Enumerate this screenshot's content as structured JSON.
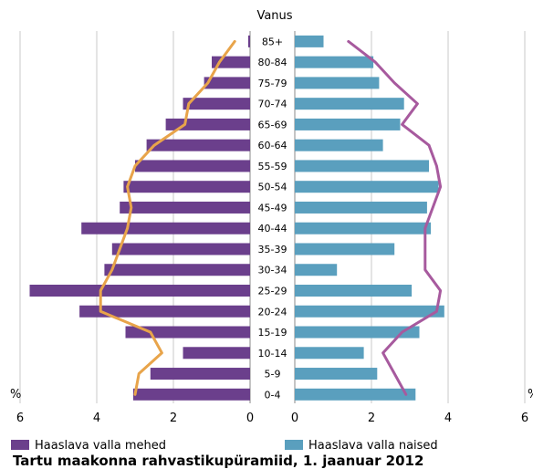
{
  "chart_data": {
    "type": "bar",
    "title": "Tartu maakonna rahvastikupüramiid, 1. jaanuar 2012",
    "category_axis_label": "Vanus",
    "unit_label_left": "%",
    "unit_label_right": "%",
    "categories": [
      "85+",
      "80-84",
      "75-79",
      "70-74",
      "65-69",
      "60-64",
      "55-59",
      "50-54",
      "45-49",
      "40-44",
      "35-39",
      "30-34",
      "25-29",
      "20-24",
      "15-19",
      "10-14",
      "5-9",
      "0-4"
    ],
    "x_ticks_left": [
      "6",
      "4",
      "2",
      "0"
    ],
    "x_ticks_right": [
      "0",
      "2",
      "4",
      "6"
    ],
    "xlim": [
      0,
      6
    ],
    "grid": true,
    "series": [
      {
        "name": "Haaslava valla mehed",
        "side": "left",
        "color": "#6b3f8c",
        "values": [
          0.05,
          1.0,
          1.2,
          1.75,
          2.2,
          2.7,
          3.0,
          3.3,
          3.4,
          4.4,
          3.6,
          3.8,
          5.75,
          4.45,
          3.25,
          1.75,
          2.6,
          3.05
        ]
      },
      {
        "name": "Haaslava valla naised",
        "side": "right",
        "color": "#5a9fbe",
        "values": [
          0.75,
          2.05,
          2.2,
          2.85,
          2.75,
          2.3,
          3.5,
          3.75,
          3.45,
          3.55,
          2.6,
          1.1,
          3.05,
          3.9,
          3.25,
          1.8,
          2.15,
          3.15
        ]
      }
    ],
    "lines": [
      {
        "side": "left",
        "color": "#e8a44a",
        "values": [
          0.4,
          0.8,
          1.1,
          1.6,
          1.7,
          2.5,
          3.0,
          3.2,
          3.1,
          3.2,
          3.4,
          3.6,
          3.9,
          3.9,
          2.6,
          2.3,
          2.9,
          3.0
        ]
      },
      {
        "side": "right",
        "color": "#a75a9e",
        "values": [
          1.4,
          2.1,
          2.6,
          3.2,
          2.8,
          3.5,
          3.7,
          3.8,
          3.6,
          3.4,
          3.4,
          3.4,
          3.8,
          3.7,
          2.8,
          2.3,
          2.6,
          2.9
        ]
      }
    ]
  },
  "legend": {
    "left_label": "Haaslava valla mehed",
    "right_label": "Haaslava valla naised"
  }
}
